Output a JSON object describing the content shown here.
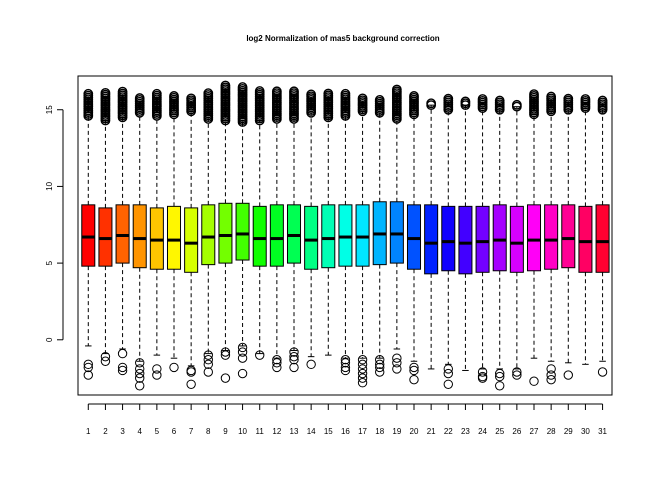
{
  "chart_data": {
    "type": "boxplot",
    "title": "log2 Normalization of mas5 background correction",
    "xlabel": "",
    "ylabel": "",
    "ylim": [
      -3.6,
      17.2
    ],
    "yticks": [
      0,
      5,
      10,
      15
    ],
    "categories": [
      "1",
      "2",
      "3",
      "4",
      "5",
      "6",
      "7",
      "8",
      "9",
      "10",
      "11",
      "12",
      "13",
      "14",
      "15",
      "16",
      "17",
      "18",
      "19",
      "20",
      "21",
      "22",
      "23",
      "24",
      "25",
      "26",
      "27",
      "28",
      "29",
      "30",
      "31"
    ],
    "colors": [
      "#FF0000",
      "#FF3100",
      "#FF6300",
      "#FF9400",
      "#FFC500",
      "#FFF700",
      "#D6FF00",
      "#A5FF00",
      "#73FF00",
      "#42FF00",
      "#10FF00",
      "#00FF21",
      "#00FF52",
      "#00FF84",
      "#00FFB5",
      "#00FFE6",
      "#00E6FF",
      "#00B5FF",
      "#0084FF",
      "#0052FF",
      "#0021FF",
      "#1000FF",
      "#4200FF",
      "#7300FF",
      "#A500FF",
      "#D600FF",
      "#FF00F7",
      "#FF00C5",
      "#FF0094",
      "#FF0063",
      "#FF0031"
    ],
    "boxes": [
      {
        "q1": 4.8,
        "median": 6.7,
        "q3": 8.8,
        "whisker_low": -0.4,
        "whisker_high": 14.6,
        "outliers_low": [
          -1.6,
          -1.8,
          -2.3
        ],
        "outliers_high_range": [
          14.6,
          16.1
        ]
      },
      {
        "q1": 4.8,
        "median": 6.6,
        "q3": 8.6,
        "whisker_low": -0.9,
        "whisker_high": 14.3,
        "outliers_low": [
          -1.1,
          -1.4
        ],
        "outliers_high_range": [
          14.3,
          16.2
        ]
      },
      {
        "q1": 5.0,
        "median": 6.8,
        "q3": 8.8,
        "whisker_low": -0.6,
        "whisker_high": 14.5,
        "outliers_low": [
          -0.9,
          -1.8,
          -2.0
        ],
        "outliers_high_range": [
          14.5,
          16.2
        ]
      },
      {
        "q1": 4.7,
        "median": 6.6,
        "q3": 8.8,
        "whisker_low": -1.4,
        "whisker_high": 14.8,
        "outliers_low": [
          -1.5,
          -1.9,
          -2.2,
          -2.5,
          -3.0
        ],
        "outliers_high_range": [
          14.8,
          15.8
        ]
      },
      {
        "q1": 4.6,
        "median": 6.5,
        "q3": 8.6,
        "whisker_low": -1.0,
        "whisker_high": 14.6,
        "outliers_low": [
          -1.9,
          -2.3
        ],
        "outliers_high_range": [
          14.6,
          16.1
        ]
      },
      {
        "q1": 4.6,
        "median": 6.5,
        "q3": 8.7,
        "whisker_low": -1.2,
        "whisker_high": 14.7,
        "outliers_low": [
          -1.8
        ],
        "outliers_high_range": [
          14.7,
          16.0
        ]
      },
      {
        "q1": 4.4,
        "median": 6.3,
        "q3": 8.6,
        "whisker_low": -1.7,
        "whisker_high": 14.9,
        "outliers_low": [
          -2.0,
          -2.1,
          -2.9
        ],
        "outliers_high_range": [
          14.9,
          15.8
        ]
      },
      {
        "q1": 4.9,
        "median": 6.7,
        "q3": 8.8,
        "whisker_low": -0.9,
        "whisker_high": 14.4,
        "outliers_low": [
          -1.0,
          -1.3,
          -1.6,
          -2.1
        ],
        "outliers_high_range": [
          14.4,
          16.1
        ]
      },
      {
        "q1": 5.0,
        "median": 6.8,
        "q3": 8.9,
        "whisker_low": -0.7,
        "whisker_high": 14.3,
        "outliers_low": [
          -0.8,
          -1.0,
          -2.5
        ],
        "outliers_high_range": [
          14.3,
          16.6
        ]
      },
      {
        "q1": 5.2,
        "median": 6.9,
        "q3": 8.9,
        "whisker_low": -0.4,
        "whisker_high": 14.2,
        "outliers_low": [
          -0.5,
          -0.8,
          -1.2,
          -2.2
        ],
        "outliers_high_range": [
          14.2,
          16.5
        ]
      },
      {
        "q1": 4.8,
        "median": 6.6,
        "q3": 8.7,
        "whisker_low": -0.9,
        "whisker_high": 14.3,
        "outliers_low": [
          -1.0
        ],
        "outliers_high_range": [
          14.3,
          16.3
        ]
      },
      {
        "q1": 4.8,
        "median": 6.6,
        "q3": 8.8,
        "whisker_low": -1.2,
        "whisker_high": 14.4,
        "outliers_low": [
          -1.3,
          -1.5,
          -1.8
        ],
        "outliers_high_range": [
          14.4,
          16.2
        ]
      },
      {
        "q1": 5.0,
        "median": 6.8,
        "q3": 8.8,
        "whisker_low": -0.7,
        "whisker_high": 14.4,
        "outliers_low": [
          -0.8,
          -1.1,
          -1.3,
          -1.8
        ],
        "outliers_high_range": [
          14.4,
          16.3
        ]
      },
      {
        "q1": 4.6,
        "median": 6.5,
        "q3": 8.7,
        "whisker_low": -1.1,
        "whisker_high": 14.8,
        "outliers_low": [
          -1.6
        ],
        "outliers_high_range": [
          14.8,
          16.0
        ]
      },
      {
        "q1": 4.7,
        "median": 6.6,
        "q3": 8.8,
        "whisker_low": -1.0,
        "whisker_high": 14.5,
        "outliers_low": [],
        "outliers_high_range": [
          14.5,
          16.1
        ]
      },
      {
        "q1": 4.8,
        "median": 6.7,
        "q3": 8.8,
        "whisker_low": -1.2,
        "whisker_high": 14.6,
        "outliers_low": [
          -1.3,
          -1.5,
          -1.8,
          -2.0
        ],
        "outliers_high_range": [
          14.6,
          16.1
        ]
      },
      {
        "q1": 4.8,
        "median": 6.7,
        "q3": 8.8,
        "whisker_low": -1.2,
        "whisker_high": 14.9,
        "outliers_low": [
          -1.3,
          -1.6,
          -1.9,
          -2.2,
          -2.5,
          -2.8
        ],
        "outliers_high_range": [
          14.9,
          15.8
        ]
      },
      {
        "q1": 4.9,
        "median": 6.9,
        "q3": 9.0,
        "whisker_low": -1.2,
        "whisker_high": 14.8,
        "outliers_low": [
          -1.3,
          -1.6,
          -1.8,
          -2.1
        ],
        "outliers_high_range": [
          14.8,
          15.7
        ]
      },
      {
        "q1": 5.0,
        "median": 6.9,
        "q3": 9.0,
        "whisker_low": -0.6,
        "whisker_high": 14.4,
        "outliers_low": [
          -1.2,
          -1.5,
          -1.9
        ],
        "outliers_high_range": [
          14.4,
          16.4
        ]
      },
      {
        "q1": 4.6,
        "median": 6.6,
        "q3": 8.8,
        "whisker_low": -1.4,
        "whisker_high": 14.7,
        "outliers_low": [
          -1.8,
          -2.0,
          -2.6
        ],
        "outliers_high_range": [
          14.7,
          15.9
        ]
      },
      {
        "q1": 4.3,
        "median": 6.3,
        "q3": 8.8,
        "whisker_low": -1.9,
        "whisker_high": 15.3,
        "outliers_low": [],
        "outliers_high_range": [
          15.3,
          15.5
        ]
      },
      {
        "q1": 4.5,
        "median": 6.4,
        "q3": 8.7,
        "whisker_low": -1.6,
        "whisker_high": 15.0,
        "outliers_low": [
          -1.9,
          -2.2,
          -2.9
        ],
        "outliers_high_range": [
          15.0,
          15.8
        ]
      },
      {
        "q1": 4.3,
        "median": 6.3,
        "q3": 8.7,
        "whisker_low": -2.0,
        "whisker_high": 15.3,
        "outliers_low": [],
        "outliers_high_range": [
          15.3,
          15.6
        ]
      },
      {
        "q1": 4.4,
        "median": 6.4,
        "q3": 8.7,
        "whisker_low": -1.9,
        "whisker_high": 15.1,
        "outliers_low": [
          -2.1,
          -2.4,
          -2.5
        ],
        "outliers_high_range": [
          15.1,
          15.7
        ]
      },
      {
        "q1": 4.5,
        "median": 6.5,
        "q3": 8.8,
        "whisker_low": -1.9,
        "whisker_high": 15.0,
        "outliers_low": [
          -2.2,
          -2.4,
          -3.0
        ],
        "outliers_high_range": [
          15.0,
          15.7
        ]
      },
      {
        "q1": 4.4,
        "median": 6.3,
        "q3": 8.7,
        "whisker_low": -1.9,
        "whisker_high": 15.2,
        "outliers_low": [
          -2.1,
          -2.3
        ],
        "outliers_high_range": [
          15.2,
          15.4
        ]
      },
      {
        "q1": 4.5,
        "median": 6.5,
        "q3": 8.8,
        "whisker_low": -1.2,
        "whisker_high": 14.7,
        "outliers_low": [
          -2.7
        ],
        "outliers_high_range": [
          14.7,
          16.1
        ]
      },
      {
        "q1": 4.6,
        "median": 6.5,
        "q3": 8.8,
        "whisker_low": -1.4,
        "whisker_high": 14.9,
        "outliers_low": [
          -1.9,
          -2.3,
          -2.6
        ],
        "outliers_high_range": [
          14.9,
          15.9
        ]
      },
      {
        "q1": 4.7,
        "median": 6.6,
        "q3": 8.8,
        "whisker_low": -1.5,
        "whisker_high": 15.0,
        "outliers_low": [
          -2.3
        ],
        "outliers_high_range": [
          15.0,
          15.8
        ]
      },
      {
        "q1": 4.4,
        "median": 6.4,
        "q3": 8.7,
        "whisker_low": -1.6,
        "whisker_high": 15.1,
        "outliers_low": [],
        "outliers_high_range": [
          15.1,
          15.7
        ]
      },
      {
        "q1": 4.4,
        "median": 6.4,
        "q3": 8.8,
        "whisker_low": -1.4,
        "whisker_high": 15.0,
        "outliers_low": [
          -2.1
        ],
        "outliers_high_range": [
          15.0,
          15.7
        ]
      }
    ],
    "legend": "none",
    "grid": false
  }
}
